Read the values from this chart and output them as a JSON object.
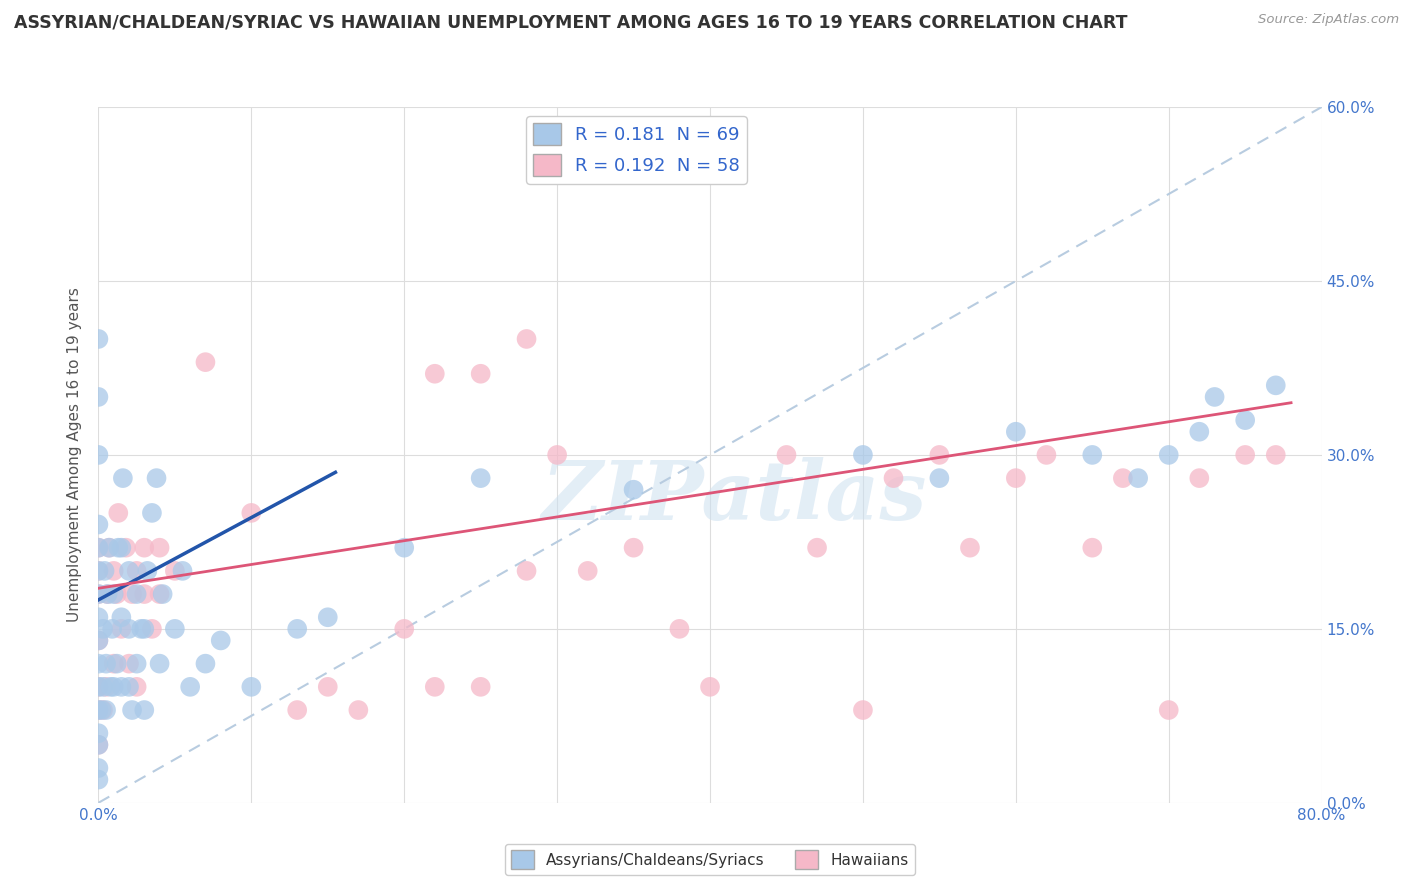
{
  "title": "ASSYRIAN/CHALDEAN/SYRIAC VS HAWAIIAN UNEMPLOYMENT AMONG AGES 16 TO 19 YEARS CORRELATION CHART",
  "source_text": "Source: ZipAtlas.com",
  "ylabel": "Unemployment Among Ages 16 to 19 years",
  "xlim": [
    0.0,
    0.8
  ],
  "ylim": [
    0.0,
    0.6
  ],
  "xticks": [
    0.0,
    0.1,
    0.2,
    0.3,
    0.4,
    0.5,
    0.6,
    0.7,
    0.8
  ],
  "yticks": [
    0.0,
    0.15,
    0.3,
    0.45,
    0.6
  ],
  "ytick_labels_right": [
    "0.0%",
    "15.0%",
    "30.0%",
    "45.0%",
    "60.0%"
  ],
  "xtick_label_left": "0.0%",
  "xtick_label_right": "80.0%",
  "legend_labels": [
    "Assyrians/Chaldeans/Syriacs",
    "Hawaiians"
  ],
  "blue_color": "#a8c8e8",
  "pink_color": "#f5b8c8",
  "blue_line_color": "#2255aa",
  "pink_line_color": "#dd5577",
  "dashed_line_color": "#b8cce0",
  "watermark": "ZIPatlas",
  "R_blue": 0.181,
  "N_blue": 69,
  "R_pink": 0.192,
  "N_pink": 58,
  "blue_line_x": [
    0.0,
    0.155
  ],
  "blue_line_y": [
    0.175,
    0.285
  ],
  "pink_line_x": [
    0.0,
    0.78
  ],
  "pink_line_y": [
    0.185,
    0.345
  ],
  "dashed_line_x": [
    0.0,
    0.8
  ],
  "dashed_line_y": [
    0.0,
    0.6
  ],
  "blue_scatter_x": [
    0.0,
    0.0,
    0.0,
    0.0,
    0.0,
    0.0,
    0.0,
    0.0,
    0.0,
    0.0,
    0.0,
    0.0,
    0.0,
    0.0,
    0.0,
    0.0,
    0.002,
    0.003,
    0.003,
    0.004,
    0.005,
    0.005,
    0.006,
    0.007,
    0.008,
    0.009,
    0.01,
    0.01,
    0.012,
    0.013,
    0.015,
    0.015,
    0.015,
    0.016,
    0.02,
    0.02,
    0.02,
    0.022,
    0.025,
    0.025,
    0.028,
    0.03,
    0.03,
    0.032,
    0.035,
    0.038,
    0.04,
    0.042,
    0.05,
    0.055,
    0.06,
    0.07,
    0.08,
    0.1,
    0.13,
    0.15,
    0.2,
    0.25,
    0.35,
    0.5,
    0.55,
    0.6,
    0.65,
    0.68,
    0.7,
    0.72,
    0.73,
    0.75,
    0.77
  ],
  "blue_scatter_y": [
    0.02,
    0.03,
    0.05,
    0.06,
    0.08,
    0.1,
    0.12,
    0.14,
    0.16,
    0.18,
    0.2,
    0.22,
    0.24,
    0.3,
    0.35,
    0.4,
    0.08,
    0.1,
    0.15,
    0.2,
    0.08,
    0.12,
    0.18,
    0.22,
    0.1,
    0.15,
    0.1,
    0.18,
    0.12,
    0.22,
    0.1,
    0.16,
    0.22,
    0.28,
    0.1,
    0.15,
    0.2,
    0.08,
    0.12,
    0.18,
    0.15,
    0.08,
    0.15,
    0.2,
    0.25,
    0.28,
    0.12,
    0.18,
    0.15,
    0.2,
    0.1,
    0.12,
    0.14,
    0.1,
    0.15,
    0.16,
    0.22,
    0.28,
    0.27,
    0.3,
    0.28,
    0.32,
    0.3,
    0.28,
    0.3,
    0.32,
    0.35,
    0.33,
    0.36
  ],
  "pink_scatter_x": [
    0.0,
    0.0,
    0.0,
    0.0,
    0.0,
    0.0,
    0.0,
    0.003,
    0.005,
    0.006,
    0.007,
    0.01,
    0.01,
    0.012,
    0.013,
    0.015,
    0.018,
    0.02,
    0.022,
    0.025,
    0.025,
    0.03,
    0.03,
    0.035,
    0.04,
    0.04,
    0.05,
    0.07,
    0.1,
    0.13,
    0.15,
    0.17,
    0.2,
    0.22,
    0.25,
    0.28,
    0.3,
    0.32,
    0.35,
    0.38,
    0.4,
    0.45,
    0.47,
    0.5,
    0.52,
    0.55,
    0.57,
    0.6,
    0.62,
    0.65,
    0.67,
    0.7,
    0.72,
    0.75,
    0.77,
    0.22,
    0.25,
    0.28
  ],
  "pink_scatter_y": [
    0.05,
    0.08,
    0.1,
    0.14,
    0.18,
    0.2,
    0.22,
    0.08,
    0.1,
    0.18,
    0.22,
    0.12,
    0.2,
    0.18,
    0.25,
    0.15,
    0.22,
    0.12,
    0.18,
    0.1,
    0.2,
    0.18,
    0.22,
    0.15,
    0.18,
    0.22,
    0.2,
    0.38,
    0.25,
    0.08,
    0.1,
    0.08,
    0.15,
    0.1,
    0.1,
    0.2,
    0.3,
    0.2,
    0.22,
    0.15,
    0.1,
    0.3,
    0.22,
    0.08,
    0.28,
    0.3,
    0.22,
    0.28,
    0.3,
    0.22,
    0.28,
    0.08,
    0.28,
    0.3,
    0.3,
    0.37,
    0.37,
    0.4
  ],
  "background_color": "#ffffff",
  "grid_color": "#dddddd"
}
